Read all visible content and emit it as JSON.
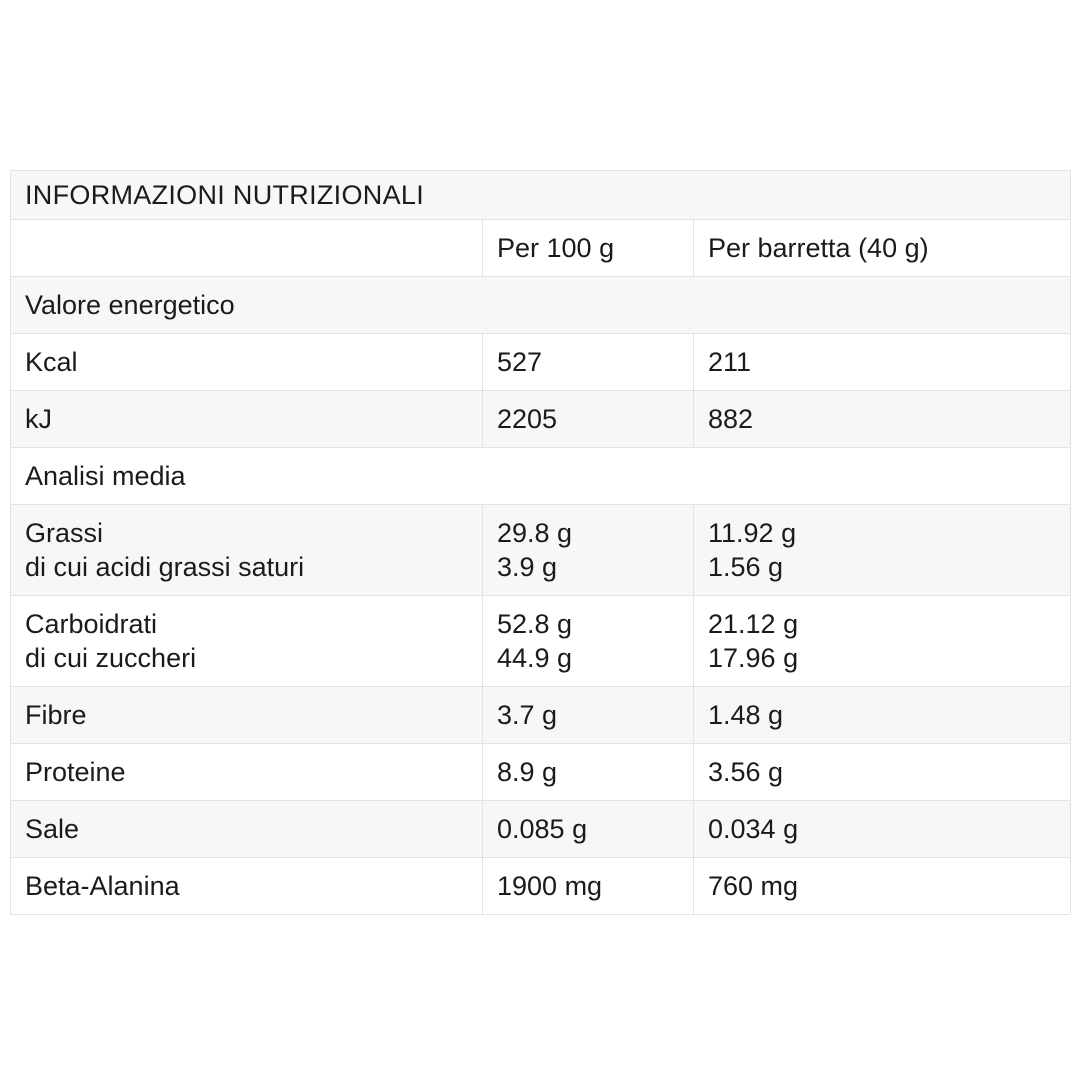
{
  "nutrition_table": {
    "title": "INFORMAZIONI NUTRIZIONALI",
    "header": {
      "per_100g": "Per 100 g",
      "per_barretta": "Per barretta (40 g)"
    },
    "sections": {
      "energy": "Valore energetico",
      "analysis": "Analisi media"
    },
    "rows": {
      "kcal": {
        "label": "Kcal",
        "per_100g": "527",
        "per_barretta": "211"
      },
      "kj": {
        "label": "kJ",
        "per_100g": "2205",
        "per_barretta": "882"
      },
      "grassi": {
        "label": [
          "Grassi",
          "di cui acidi grassi saturi"
        ],
        "per_100g": [
          "29.8 g",
          "3.9 g"
        ],
        "per_barretta": [
          "11.92 g",
          "1.56 g"
        ]
      },
      "carboidrati": {
        "label": [
          "Carboidrati",
          "di cui zuccheri"
        ],
        "per_100g": [
          "52.8 g",
          "44.9 g"
        ],
        "per_barretta": [
          "21.12 g",
          "17.96 g"
        ]
      },
      "fibre": {
        "label": "Fibre",
        "per_100g": "3.7 g",
        "per_barretta": "1.48 g"
      },
      "proteine": {
        "label": "Proteine",
        "per_100g": "8.9 g",
        "per_barretta": "3.56 g"
      },
      "sale": {
        "label": "Sale",
        "per_100g": "0.085 g",
        "per_barretta": "0.034 g"
      },
      "beta_alanina": {
        "label": "Beta-Alanina",
        "per_100g": "1900 mg",
        "per_barretta": "760 mg"
      }
    }
  }
}
